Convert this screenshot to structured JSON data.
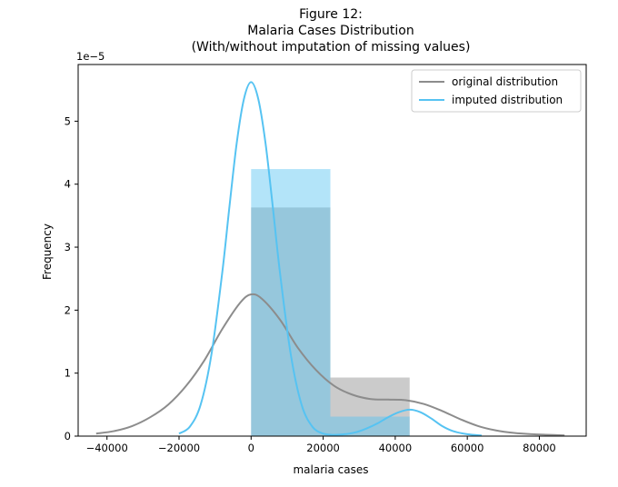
{
  "chart_data": {
    "type": "histogram+kde",
    "title_lines": [
      "Figure 12:",
      "Malaria Cases Distribution",
      "(With/without imputation of missing values)"
    ],
    "xlabel": "malaria cases",
    "ylabel": "Frequency",
    "y_offset_label": "1e−5",
    "xlim": [
      -48000,
      93000
    ],
    "ylim": [
      0,
      5.9
    ],
    "x_ticks": [
      -40000,
      -20000,
      0,
      20000,
      40000,
      60000,
      80000
    ],
    "x_tick_labels": [
      "−40000",
      "−20000",
      "0",
      "20000",
      "40000",
      "60000",
      "80000"
    ],
    "y_ticks": [
      0,
      1,
      2,
      3,
      4,
      5
    ],
    "y_tick_labels": [
      "0",
      "1",
      "2",
      "3",
      "4",
      "5"
    ],
    "grid": false,
    "legend_position": "top-right",
    "series": [
      {
        "name": "original distribution",
        "color": "#8c8c8c",
        "hist_color": "#8c8c8c",
        "bins": [
          {
            "x0": 0,
            "x1": 22000,
            "value": 3.63
          },
          {
            "x0": 22000,
            "x1": 44000,
            "value": 0.93
          }
        ],
        "kde": {
          "x": [
            -43000,
            -38000,
            -33000,
            -28000,
            -23000,
            -18000,
            -13000,
            -8000,
            -3000,
            0,
            3000,
            8000,
            13000,
            18000,
            23000,
            28000,
            33000,
            38000,
            43000,
            48000,
            53000,
            58000,
            63000,
            68000,
            73000,
            78000,
            83000,
            87000
          ],
          "y": [
            0.04,
            0.08,
            0.16,
            0.3,
            0.5,
            0.8,
            1.2,
            1.7,
            2.12,
            2.25,
            2.18,
            1.85,
            1.4,
            1.05,
            0.8,
            0.66,
            0.59,
            0.58,
            0.57,
            0.51,
            0.4,
            0.27,
            0.16,
            0.09,
            0.05,
            0.03,
            0.02,
            0.01
          ]
        }
      },
      {
        "name": "imputed distribution",
        "color": "#56c3f2",
        "hist_color": "#56c3f2",
        "bins": [
          {
            "x0": 0,
            "x1": 22000,
            "value": 4.24
          },
          {
            "x0": 22000,
            "x1": 44000,
            "value": 0.31
          }
        ],
        "kde": {
          "x": [
            -20000,
            -17000,
            -14000,
            -11000,
            -8000,
            -6000,
            -4000,
            -2000,
            0,
            2000,
            4000,
            6000,
            8000,
            11000,
            14000,
            17000,
            20000,
            23000,
            26000,
            29000,
            32000,
            35000,
            38000,
            41000,
            44000,
            47000,
            50000,
            53000,
            56000,
            60000,
            64000
          ],
          "y": [
            0.04,
            0.15,
            0.5,
            1.3,
            2.6,
            3.65,
            4.65,
            5.35,
            5.62,
            5.35,
            4.65,
            3.65,
            2.6,
            1.3,
            0.5,
            0.15,
            0.04,
            0.02,
            0.03,
            0.06,
            0.12,
            0.2,
            0.3,
            0.38,
            0.42,
            0.38,
            0.28,
            0.16,
            0.08,
            0.03,
            0.01
          ]
        }
      }
    ]
  }
}
